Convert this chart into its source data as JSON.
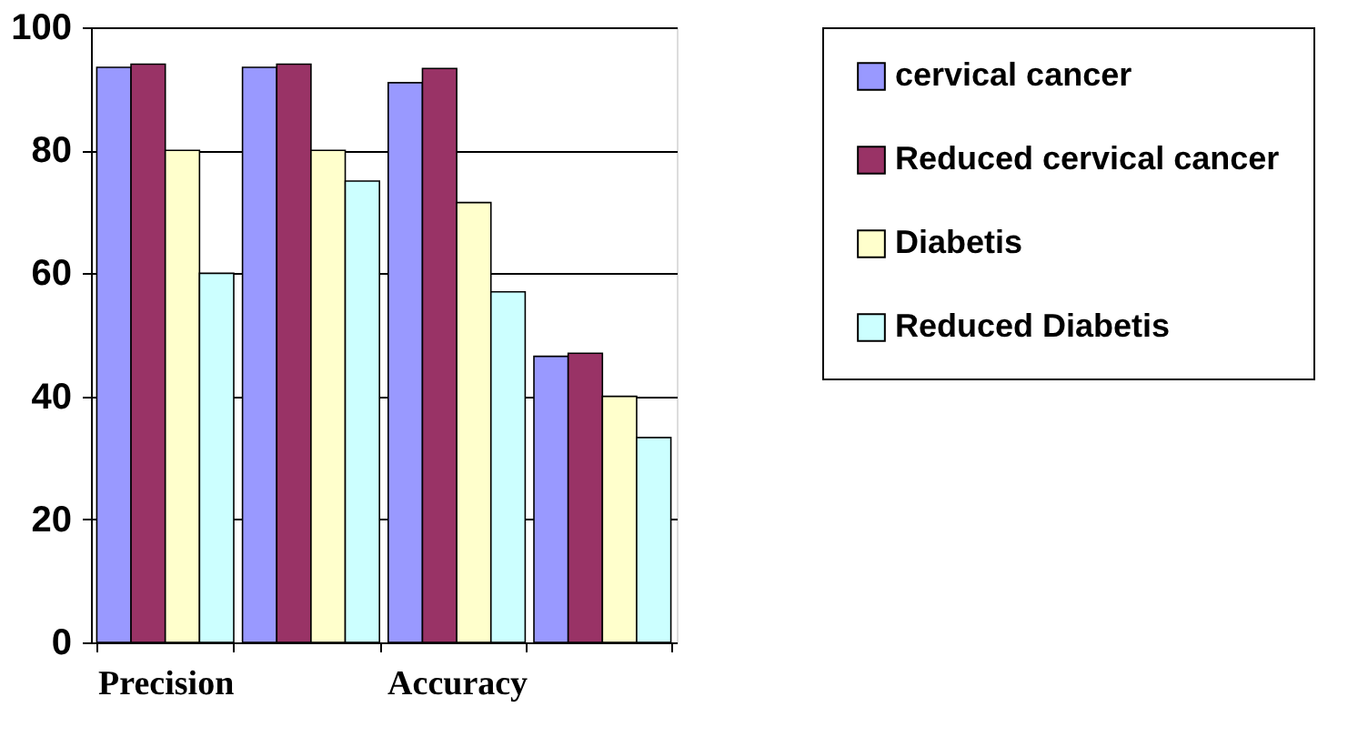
{
  "chart_data": {
    "type": "bar",
    "categories": [
      "Precision",
      null,
      "Accuracy",
      null
    ],
    "series": [
      {
        "name": "cervical cancer",
        "color": "#9999ff",
        "values": [
          93.5,
          93.5,
          91,
          46.5
        ]
      },
      {
        "name": "Reduced cervical cancer",
        "color": "#993366",
        "values": [
          94,
          94,
          93.3,
          47
        ]
      },
      {
        "name": "Diabetis",
        "color": "#ffffcc",
        "values": [
          80,
          80,
          71.5,
          40
        ]
      },
      {
        "name": "Reduced Diabetis",
        "color": "#ccffff",
        "values": [
          60,
          75,
          57,
          33.3
        ]
      }
    ],
    "ylim": [
      0,
      100
    ],
    "yticks": [
      0,
      20,
      40,
      60,
      80,
      100
    ],
    "grid": "y",
    "legend": "right"
  }
}
